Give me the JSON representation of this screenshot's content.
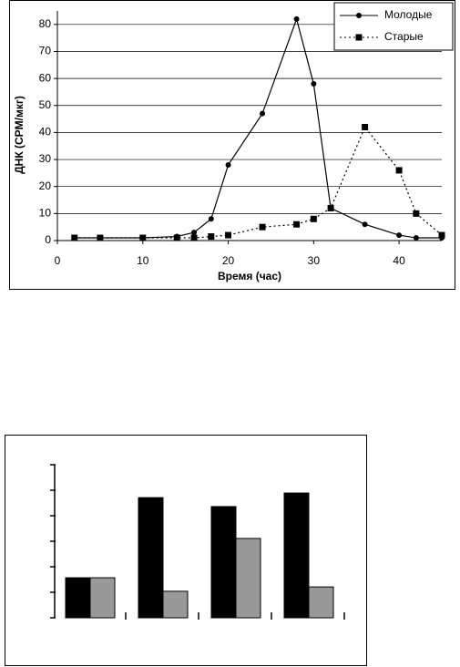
{
  "chart_data": [
    {
      "type": "line",
      "xlabel": "Время (час)",
      "ylabel": "ДНК (CPM/мкг)",
      "x": [
        2,
        5,
        10,
        14,
        16,
        18,
        20,
        24,
        28,
        30,
        32,
        36,
        40,
        42,
        45
      ],
      "series": [
        {
          "name": "Молодые",
          "color": "#000000",
          "line_style": "solid",
          "marker": "circle",
          "values": [
            1,
            1,
            1,
            1.5,
            3,
            8,
            28,
            47,
            82,
            58,
            12,
            6,
            2,
            1,
            1
          ]
        },
        {
          "name": "Старые",
          "color": "#000000",
          "line_style": "dotted",
          "marker": "square",
          "values": [
            1,
            1,
            1,
            1,
            1,
            1.5,
            2,
            5,
            6,
            8,
            12,
            42,
            26,
            10,
            2
          ]
        }
      ],
      "xlim": [
        0,
        45
      ],
      "ylim": [
        0,
        85
      ],
      "xticks": [
        0,
        10,
        20,
        30,
        40
      ],
      "yticks": [
        0,
        10,
        20,
        30,
        40,
        50,
        60,
        70,
        80
      ],
      "grid": true,
      "legend": "upper right"
    },
    {
      "type": "bar",
      "categories": [
        null,
        null,
        null,
        null
      ],
      "series": [
        {
          "color": "#000000",
          "values": [
            1.57,
            4.71,
            4.36,
            4.89
          ]
        },
        {
          "color": "#999999",
          "values": [
            1.57,
            1.04,
            3.11,
            1.21
          ]
        }
      ],
      "ylim": [
        0,
        6
      ],
      "yticks": [
        0,
        1,
        2,
        3,
        4,
        5,
        6
      ]
    }
  ]
}
